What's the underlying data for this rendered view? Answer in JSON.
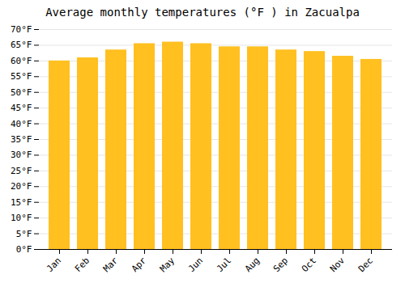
{
  "chart_data": {
    "type": "bar",
    "title": "Average monthly temperatures (°F ) in Zacualpa",
    "categories": [
      "Jan",
      "Feb",
      "Mar",
      "Apr",
      "May",
      "Jun",
      "Jul",
      "Aug",
      "Sep",
      "Oct",
      "Nov",
      "Dec"
    ],
    "values": [
      60.0,
      61.0,
      63.5,
      65.5,
      66.0,
      65.5,
      64.5,
      64.5,
      63.5,
      63.0,
      61.5,
      60.5
    ],
    "color": "#FFC020",
    "ylim": [
      0,
      70
    ],
    "yticks": [
      {
        "value": 0,
        "label": "0°F"
      },
      {
        "value": 5,
        "label": "5°F"
      },
      {
        "value": 10,
        "label": "10°F"
      },
      {
        "value": 15,
        "label": "15°F"
      },
      {
        "value": 20,
        "label": "20°F"
      },
      {
        "value": 25,
        "label": "25°F"
      },
      {
        "value": 30,
        "label": "30°F"
      },
      {
        "value": 35,
        "label": "35°F"
      },
      {
        "value": 40,
        "label": "40°F"
      },
      {
        "value": 45,
        "label": "45°F"
      },
      {
        "value": 50,
        "label": "50°F"
      },
      {
        "value": 55,
        "label": "55°F"
      },
      {
        "value": 60,
        "label": "60°F"
      },
      {
        "value": 65,
        "label": "65°F"
      },
      {
        "value": 70,
        "label": "70°F"
      }
    ],
    "grid": true
  }
}
